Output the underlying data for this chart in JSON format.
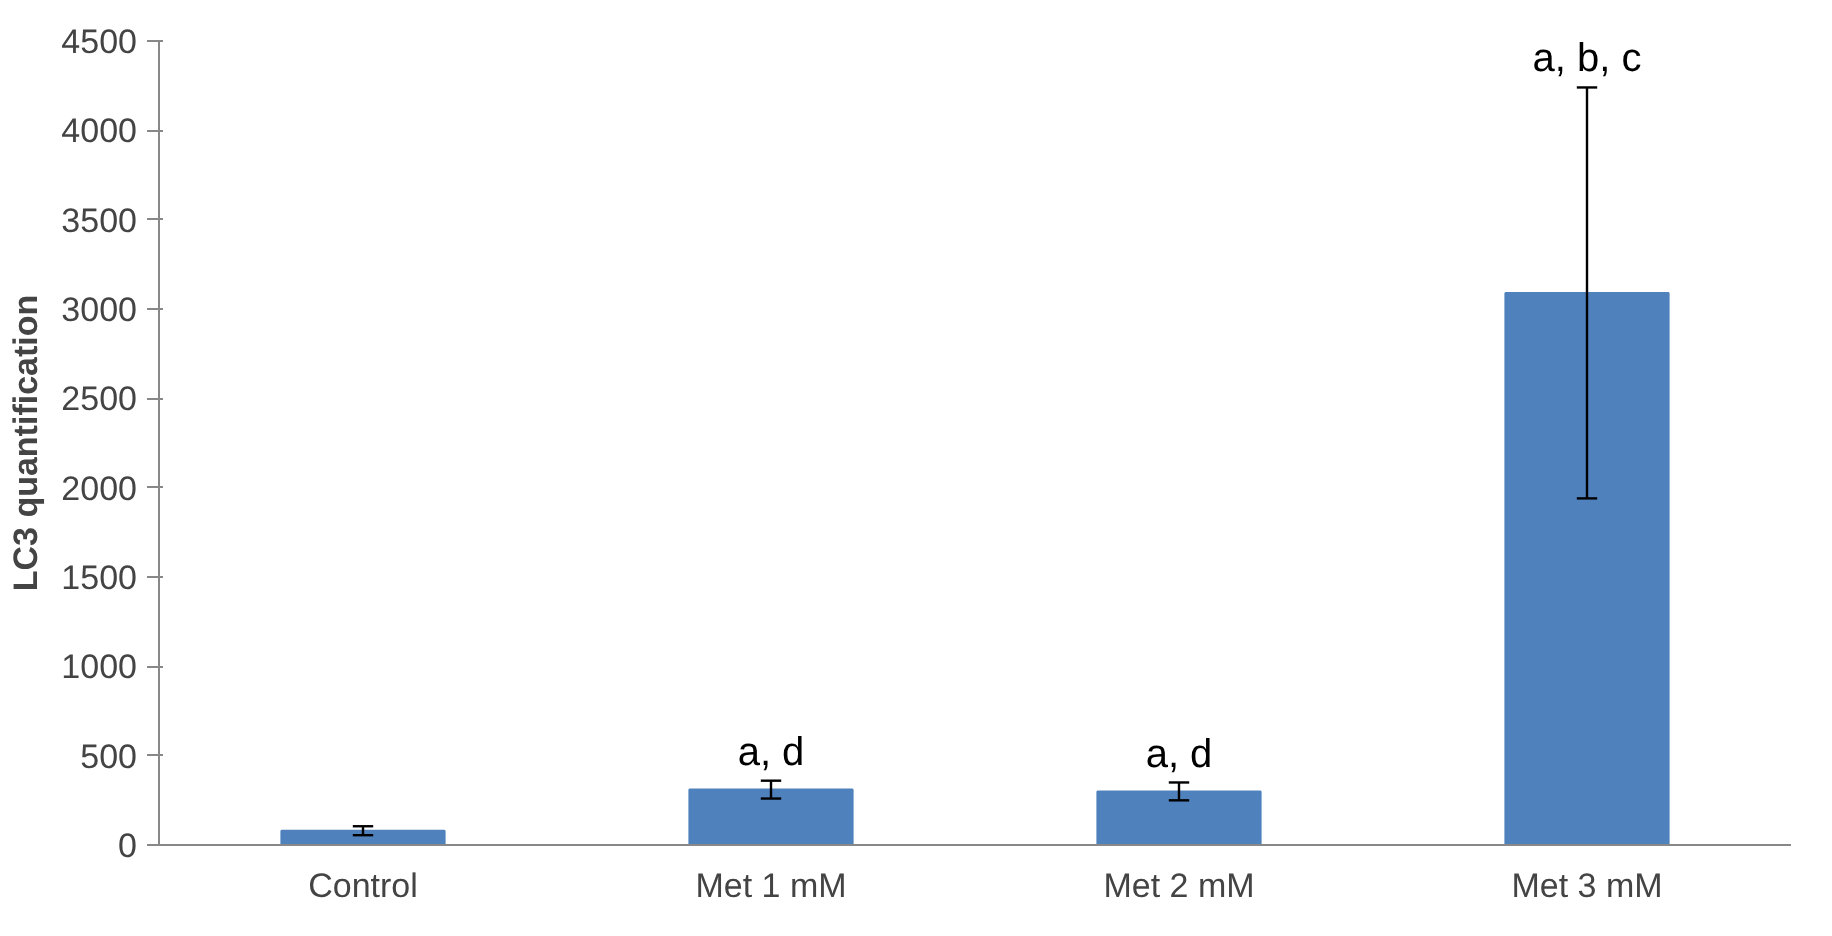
{
  "chart_data": {
    "type": "bar",
    "ylabel": "LC3 quantification",
    "categories": [
      "Control",
      "Met 1 mM",
      "Met 2 mM",
      "Met 3 mM"
    ],
    "values": [
      80,
      310,
      300,
      3090
    ],
    "errors": [
      25,
      50,
      50,
      1150
    ],
    "color": "#4f81bd",
    "ylim": [
      0,
      4500
    ],
    "yticks": [
      0,
      500,
      1000,
      1500,
      2000,
      2500,
      3000,
      3500,
      4000,
      4500
    ],
    "grid": false,
    "annotations": [
      {
        "text": "a, d",
        "x": "Met 1 mM",
        "y": 360
      },
      {
        "text": "a, d",
        "x": "Met 2 mM",
        "y": 345
      },
      {
        "text": "a, b, c",
        "x": "Met 3 mM",
        "y": 4240
      }
    ]
  }
}
